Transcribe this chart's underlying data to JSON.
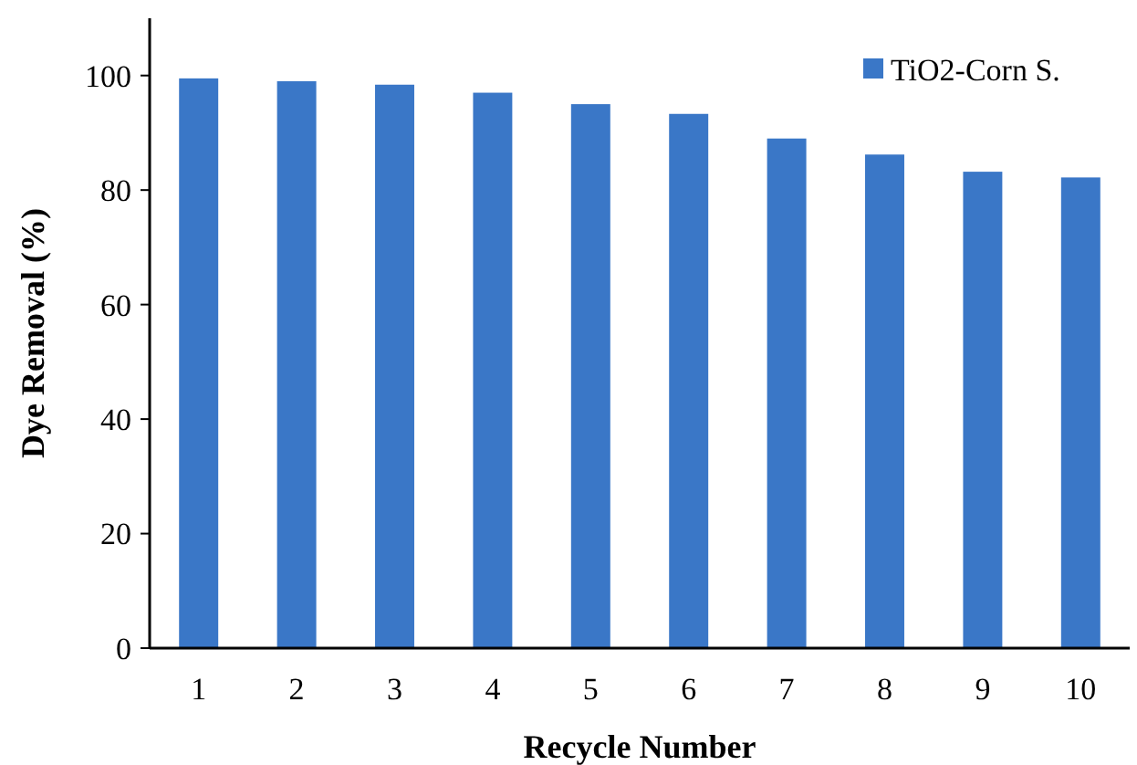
{
  "chart_data": {
    "type": "bar",
    "xlabel": "Recycle Number",
    "ylabel": "Dye Removal (%)",
    "categories": [
      "1",
      "2",
      "3",
      "4",
      "5",
      "6",
      "7",
      "8",
      "9",
      "10"
    ],
    "series": [
      {
        "name": "TiO2-Corn S.",
        "color": "#3a77c7",
        "values": [
          99.5,
          99,
          98.4,
          97,
          95,
          93.3,
          89,
          86.2,
          83.2,
          82.2
        ]
      }
    ],
    "ylim": [
      0,
      110
    ],
    "yticks": [
      0,
      20,
      40,
      60,
      80,
      100
    ],
    "grid": false,
    "legend": "top right"
  }
}
